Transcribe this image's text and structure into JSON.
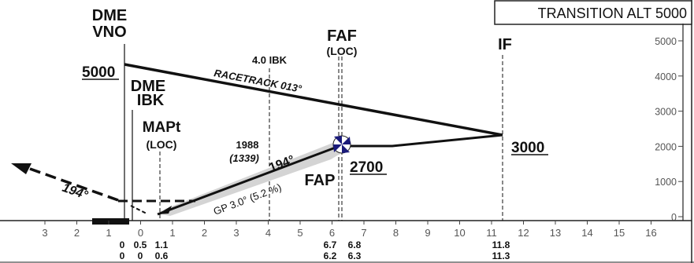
{
  "transition_alt": "TRANSITION ALT  5000",
  "fixes": {
    "dme_vno_line1": "DME",
    "dme_vno_line2": "VNO",
    "dme_ibk_line1": "DME",
    "dme_ibk_line2": "IBK",
    "mapt": "MAPt",
    "mapt_loc": "(LOC)",
    "ibk4": "4.0 IBK",
    "faf": "FAF",
    "faf_loc": "(LOC)",
    "if": "IF",
    "fap": "FAP"
  },
  "altitudes": {
    "a5000": "5000",
    "a3000": "3000",
    "a2700": "2700"
  },
  "racetrack": "RACETRACK 013°",
  "missed_heading": "194°",
  "final_heading": "194°",
  "glidepath": "GP 3.0° (5.2 %)",
  "obstacle_alt": "1988",
  "obstacle_height": "(1339)",
  "alt_axis": [
    "0",
    "1000",
    "2000",
    "3000",
    "4000",
    "5000"
  ],
  "dist_axis": [
    "3",
    "2",
    "1",
    "0",
    "1",
    "2",
    "3",
    "4",
    "5",
    "6",
    "7",
    "8",
    "9",
    "10",
    "11",
    "12",
    "13",
    "14",
    "15",
    "16"
  ],
  "dist_labels": {
    "r1a": "0",
    "r1b": "0.5",
    "r1c": "1.1",
    "r2a": "0",
    "r2b": "0",
    "r2c": "0.6",
    "faf1a": "6.7",
    "faf1b": "6.8",
    "faf2a": "6.2",
    "faf2b": "6.3",
    "if1": "11.8",
    "if2": "11.3"
  }
}
